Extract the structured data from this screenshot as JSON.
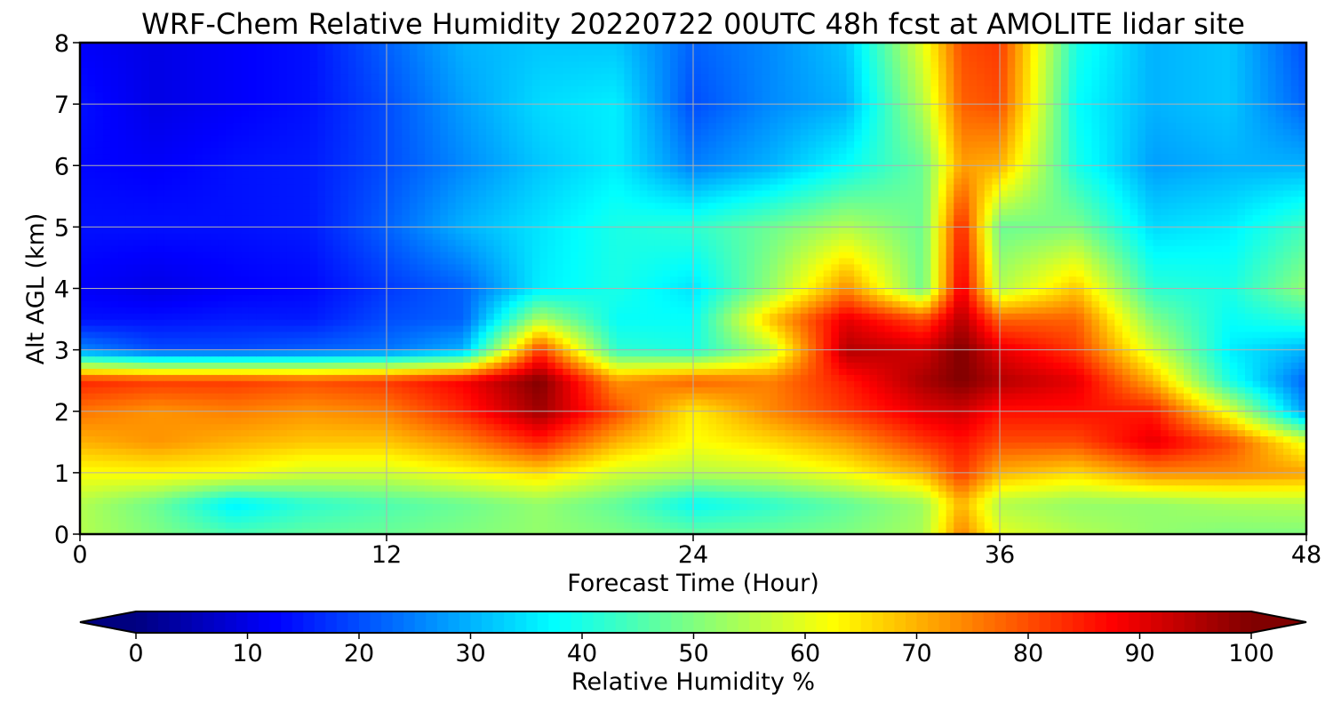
{
  "chart_data": {
    "type": "heatmap",
    "title": "WRF-Chem Relative Humidity 20220722 00UTC 48h fcst at AMOLITE lidar site",
    "xlabel": "Forecast Time (Hour)",
    "ylabel": "Alt AGL (km)",
    "xlim": [
      0,
      48
    ],
    "ylim": [
      0,
      8
    ],
    "x_ticks": [
      0,
      12,
      24,
      36,
      48
    ],
    "y_ticks": [
      0,
      1,
      2,
      3,
      4,
      5,
      6,
      7,
      8
    ],
    "grid": true,
    "colormap": "jet",
    "colorbar": {
      "label": "Relative Humidity %",
      "min": 0,
      "max": 100,
      "ticks": [
        0,
        10,
        20,
        30,
        40,
        50,
        60,
        70,
        80,
        90,
        100
      ],
      "extend": "both",
      "orientation": "horizontal"
    },
    "x": [
      0,
      3,
      6,
      9,
      12,
      15,
      18,
      21,
      24,
      27,
      30,
      33,
      34.5,
      36,
      39,
      42,
      45,
      48
    ],
    "y": [
      0,
      0.5,
      1,
      1.5,
      2,
      2.5,
      3,
      3.5,
      4,
      5,
      6,
      7,
      8
    ],
    "z": [
      [
        55,
        50,
        45,
        47,
        48,
        50,
        52,
        50,
        47,
        48,
        50,
        54,
        75,
        60,
        55,
        52,
        50,
        50
      ],
      [
        55,
        48,
        36,
        42,
        45,
        48,
        52,
        47,
        38,
        42,
        47,
        53,
        70,
        55,
        52,
        52,
        54,
        55
      ],
      [
        62,
        63,
        62,
        58,
        58,
        62,
        66,
        58,
        55,
        57,
        62,
        70,
        82,
        70,
        66,
        74,
        74,
        72
      ],
      [
        70,
        73,
        70,
        68,
        68,
        74,
        84,
        70,
        62,
        66,
        72,
        82,
        86,
        80,
        80,
        90,
        80,
        60
      ],
      [
        76,
        73,
        75,
        73,
        75,
        84,
        97,
        80,
        64,
        74,
        82,
        90,
        92,
        86,
        86,
        85,
        60,
        27
      ],
      [
        84,
        82,
        82,
        80,
        82,
        88,
        100,
        73,
        78,
        75,
        85,
        96,
        100,
        95,
        90,
        70,
        40,
        22
      ],
      [
        26,
        20,
        20,
        22,
        24,
        30,
        82,
        42,
        40,
        55,
        95,
        92,
        100,
        90,
        82,
        58,
        36,
        30
      ],
      [
        14,
        14,
        15,
        15,
        20,
        22,
        55,
        38,
        38,
        68,
        90,
        80,
        95,
        78,
        78,
        50,
        38,
        42
      ],
      [
        12,
        10,
        12,
        13,
        18,
        22,
        36,
        40,
        35,
        52,
        74,
        48,
        90,
        55,
        68,
        42,
        40,
        52
      ],
      [
        14,
        14,
        14,
        15,
        22,
        30,
        35,
        40,
        42,
        48,
        55,
        48,
        85,
        48,
        50,
        34,
        36,
        44
      ],
      [
        13,
        12,
        14,
        15,
        20,
        26,
        32,
        36,
        25,
        30,
        38,
        48,
        72,
        70,
        40,
        28,
        30,
        30
      ],
      [
        14,
        10,
        12,
        14,
        20,
        28,
        34,
        36,
        20,
        26,
        30,
        55,
        78,
        80,
        38,
        30,
        32,
        22
      ],
      [
        12,
        10,
        12,
        14,
        22,
        30,
        32,
        32,
        22,
        26,
        32,
        60,
        80,
        82,
        40,
        30,
        32,
        20
      ]
    ]
  }
}
